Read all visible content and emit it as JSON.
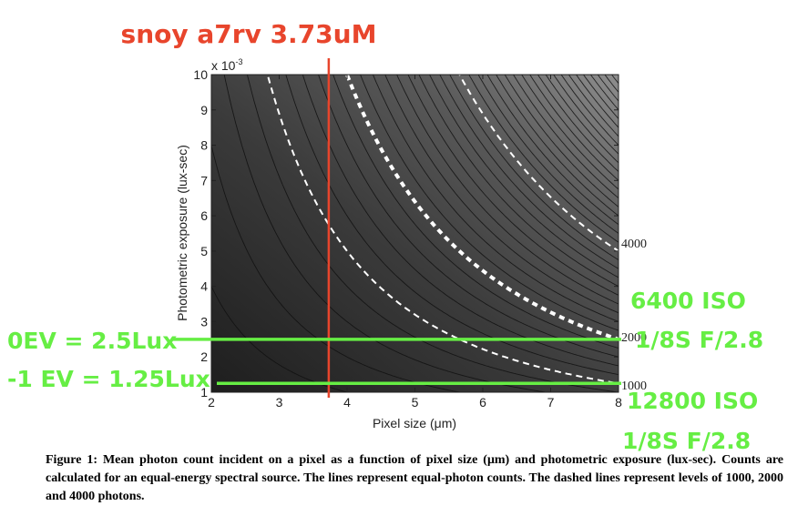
{
  "chart_data": {
    "type": "contour",
    "title": "",
    "xlabel": "Pixel size (μm)",
    "ylabel": "Photometric exposure (lux-sec)",
    "xlim": [
      2,
      8
    ],
    "ylim": [
      0.001,
      0.01
    ],
    "x_ticks": [
      "2",
      "3",
      "4",
      "5",
      "6",
      "7",
      "8"
    ],
    "y_ticks": [
      "1",
      "2",
      "3",
      "4",
      "5",
      "6",
      "7",
      "8",
      "9",
      "10"
    ],
    "y_multiplier": "x 10",
    "y_multiplier_exp": "-3",
    "contour_levels_labeled": [
      "1000",
      "2000",
      "4000"
    ],
    "dashed_levels": [
      1000,
      2000,
      4000
    ],
    "colormap": "gray",
    "annotations": {
      "title_note": "snoy a7rv 3.73uM",
      "title_note_color": "#e8452c",
      "vertical_line_x": 3.73,
      "vertical_line_color": "#e8452c",
      "hlines": [
        {
          "y": 0.0025,
          "label": "0EV = 2.5Lux"
        },
        {
          "y": 0.00125,
          "label": "-1 EV = 1.25Lux"
        }
      ],
      "hline_color": "#66ee44",
      "right_notes": [
        {
          "line1": "6400 ISO",
          "line2": "1/8S F/2.8"
        },
        {
          "line1": "12800 ISO",
          "line2": "1/8S F/2.8"
        }
      ]
    }
  },
  "caption": "Figure 1: Mean photon count incident on a pixel as a function of pixel size (μm) and photometric exposure (lux-sec). Counts are calculated for an equal-energy spectral source.  The lines represent equal-photon counts.  The dashed lines represent levels of 1000, 2000 and 4000 photons."
}
